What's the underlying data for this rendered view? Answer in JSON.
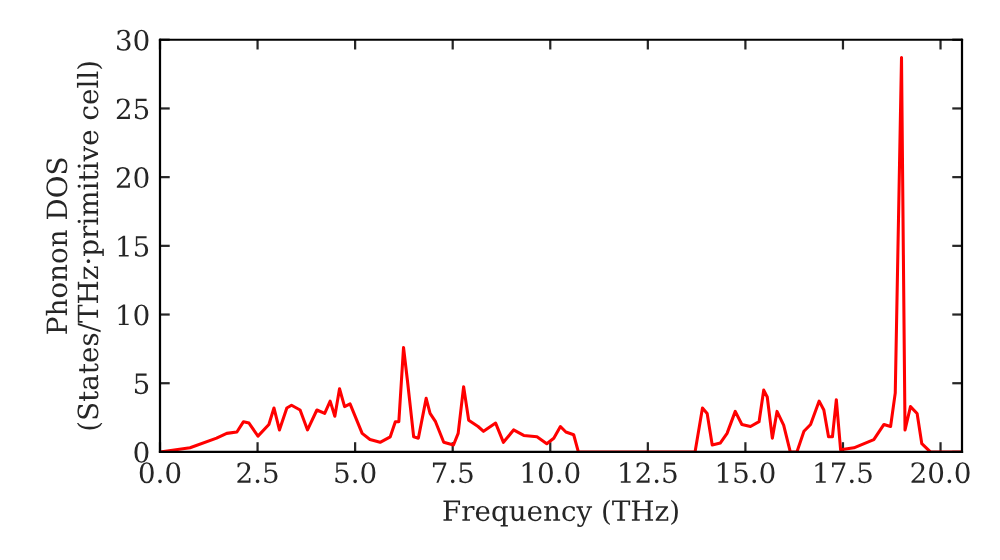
{
  "chart_data": {
    "type": "line",
    "xlabel": "Frequency (THz)",
    "ylabel": "Phonon DOS\n(States/THz·primitive cell)",
    "xlim": [
      0,
      20.55
    ],
    "ylim": [
      0,
      30
    ],
    "xticks": [
      {
        "value": 0,
        "label": "0.0"
      },
      {
        "value": 2.5,
        "label": "2.5"
      },
      {
        "value": 5,
        "label": "5.0"
      },
      {
        "value": 7.5,
        "label": "7.5"
      },
      {
        "value": 10,
        "label": "10.0"
      },
      {
        "value": 12.5,
        "label": "12.5"
      },
      {
        "value": 15,
        "label": "15.0"
      },
      {
        "value": 17.5,
        "label": "17.5"
      },
      {
        "value": 20,
        "label": "20.0"
      }
    ],
    "yticks": [
      0,
      5,
      10,
      15,
      20,
      25,
      30
    ],
    "grid": false,
    "legend": false,
    "marker": "none",
    "line_style": "solid",
    "series": [
      {
        "color": "#ff0000",
        "x": [
          0,
          0.77,
          1.45,
          1.71,
          1.97,
          2.14,
          2.28,
          2.51,
          2.79,
          2.92,
          3.06,
          3.25,
          3.37,
          3.59,
          3.78,
          4.02,
          4.22,
          4.36,
          4.48,
          4.6,
          4.73,
          4.87,
          5.18,
          5.38,
          5.64,
          5.9,
          6.03,
          6.12,
          6.24,
          6.34,
          6.5,
          6.62,
          6.82,
          6.92,
          7.06,
          7.27,
          7.52,
          7.64,
          7.78,
          7.91,
          8.15,
          8.29,
          8.6,
          8.8,
          9.06,
          9.32,
          9.66,
          9.91,
          10.09,
          10.26,
          10.4,
          10.6,
          10.72,
          13.71,
          13.9,
          14.02,
          14.15,
          14.36,
          14.53,
          14.74,
          14.91,
          15.13,
          15.35,
          15.47,
          15.56,
          15.69,
          15.81,
          15.98,
          16.15,
          16.32,
          16.5,
          16.67,
          16.89,
          17.01,
          17.13,
          17.23,
          17.33,
          17.44,
          17.78,
          18.29,
          18.55,
          18.72,
          18.84,
          19.0,
          19.09,
          19.23,
          19.4,
          19.52,
          19.74,
          20.55
        ],
        "values": [
          0,
          0.3,
          1.0,
          1.35,
          1.45,
          2.2,
          2.1,
          1.15,
          2.0,
          3.2,
          1.6,
          3.2,
          3.4,
          3.05,
          1.6,
          3.05,
          2.8,
          3.7,
          2.6,
          4.6,
          3.3,
          3.5,
          1.35,
          0.9,
          0.7,
          1.1,
          2.2,
          2.2,
          7.6,
          5.2,
          1.1,
          1.0,
          3.9,
          2.8,
          2.2,
          0.7,
          0.5,
          1.35,
          4.75,
          2.3,
          1.85,
          1.5,
          2.1,
          0.7,
          1.6,
          1.2,
          1.1,
          0.6,
          1.0,
          1.85,
          1.45,
          1.25,
          0,
          0,
          3.2,
          2.8,
          0.5,
          0.65,
          1.35,
          2.95,
          2.0,
          1.85,
          2.2,
          4.5,
          4.0,
          1.0,
          2.95,
          1.95,
          0,
          0,
          1.5,
          2.0,
          3.7,
          3.05,
          1.1,
          1.1,
          3.8,
          0.15,
          0.3,
          0.9,
          2.0,
          1.85,
          4.3,
          28.7,
          1.6,
          3.3,
          2.8,
          0.6,
          0,
          0
        ]
      }
    ]
  }
}
